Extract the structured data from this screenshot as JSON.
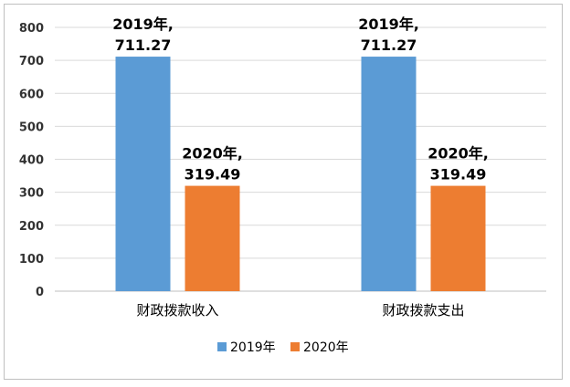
{
  "chart_data": {
    "type": "bar",
    "categories": [
      "财政拨款收入",
      "财政拨款支出"
    ],
    "series": [
      {
        "name": "2019年",
        "values": [
          711.27,
          711.27
        ],
        "color": "#5b9bd5",
        "data_labels": [
          "2019年,",
          "2019年,"
        ]
      },
      {
        "name": "2020年",
        "values": [
          319.49,
          319.49
        ],
        "color": "#ed7d31",
        "data_labels": [
          "2020年,",
          "2020年,"
        ]
      }
    ],
    "value_labels": [
      "711.27",
      "319.49"
    ],
    "ylim": [
      0,
      800
    ],
    "yticks": [
      "0",
      "100",
      "200",
      "300",
      "400",
      "500",
      "600",
      "700",
      "800"
    ],
    "grid": true,
    "legend_position": "bottom",
    "title": "",
    "xlabel": "",
    "ylabel": ""
  }
}
